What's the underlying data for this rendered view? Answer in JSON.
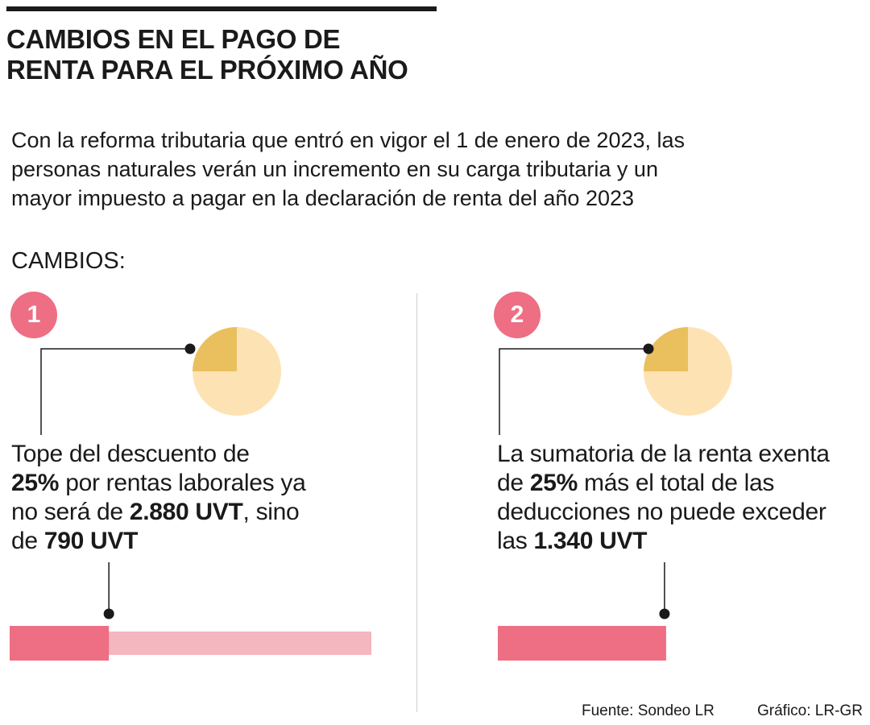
{
  "title_lines": [
    "CAMBIOS EN EL PAGO DE",
    "RENTA PARA EL PRÓXIMO AÑO"
  ],
  "intro_lines": [
    "Con la reforma tributaria que entró en vigor el 1 de enero de 2023, las",
    "personas naturales verán un incremento en su carga tributaria y un",
    "mayor impuesto a pagar en la declaración de renta del año 2023"
  ],
  "section_label": "CAMBIOS:",
  "colors": {
    "pink": "#ee6e83",
    "pink_light": "#f4b6bf",
    "pie_main": "#fde3b3",
    "pie_slice": "#eabf5e",
    "text": "#1a1a1a"
  },
  "items": [
    {
      "number": "1",
      "lines": [
        [
          "Tope del descuento de"
        ],
        [
          "25%",
          " por rentas laborales ya"
        ],
        [
          "no será de ",
          "2.880 UVT",
          ", sino"
        ],
        [
          "de ",
          "790 UVT"
        ]
      ],
      "line_bold": [
        [
          false
        ],
        [
          true,
          false
        ],
        [
          false,
          true,
          false
        ],
        [
          false,
          true
        ]
      ]
    },
    {
      "number": "2",
      "lines": [
        [
          "La sumatoria de la renta exenta"
        ],
        [
          "de ",
          "25%",
          " más el total de las"
        ],
        [
          "deducciones no puede exceder"
        ],
        [
          "las ",
          "1.340 UVT"
        ]
      ],
      "line_bold": [
        [
          false
        ],
        [
          false,
          true,
          false
        ],
        [
          false
        ],
        [
          false,
          true
        ]
      ]
    }
  ],
  "chart_data": [
    {
      "type": "pie",
      "slices": [
        {
          "label": "25%",
          "value": 25
        },
        {
          "label": "",
          "value": 75
        }
      ]
    },
    {
      "type": "bar",
      "orientation": "horizontal",
      "categories": [
        "2.880 UVT",
        "790 UVT"
      ],
      "values": [
        2880,
        790
      ],
      "stacked_overlay": true
    },
    {
      "type": "pie",
      "slices": [
        {
          "label": "25%",
          "value": 25
        },
        {
          "label": "",
          "value": 75
        }
      ]
    },
    {
      "type": "bar",
      "orientation": "horizontal",
      "categories": [
        "1.340 UVT"
      ],
      "values": [
        1340
      ]
    }
  ],
  "footer": {
    "source": "Fuente: Sondeo LR",
    "graphic": "Gráfico: LR-GR"
  }
}
